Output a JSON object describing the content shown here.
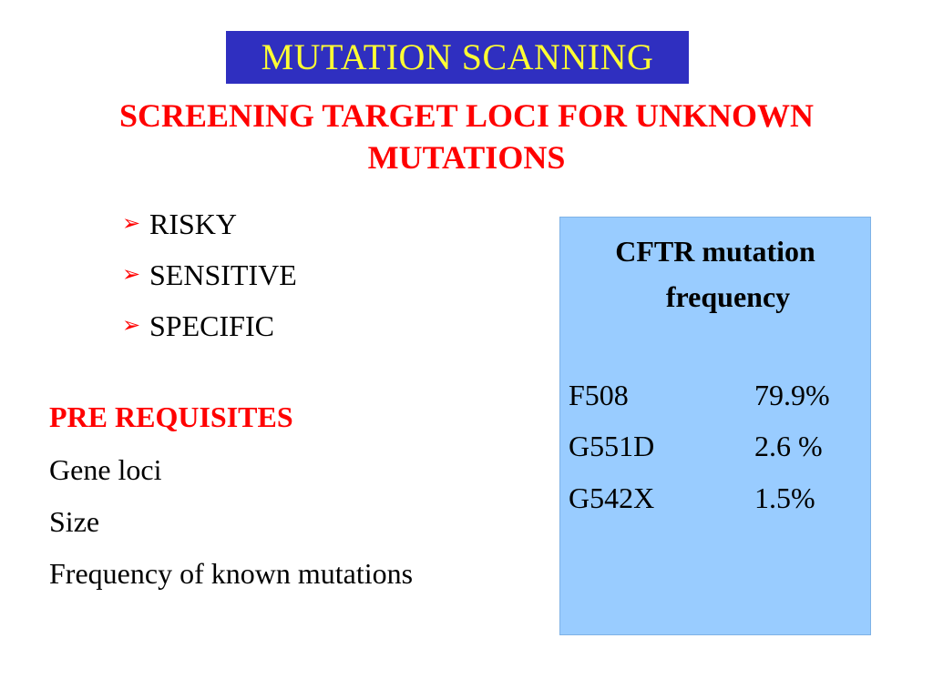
{
  "slide": {
    "title": "MUTATION SCANNING",
    "subtitle_line1": "SCREENING TARGET LOCI FOR UNKNOWN",
    "subtitle_line2": "MUTATIONS",
    "bullet_icon": "arrow-bullet-icon",
    "bullets": [
      {
        "label": "RISKY"
      },
      {
        "label": "SENSITIVE"
      },
      {
        "label": "SPECIFIC"
      }
    ],
    "prerequisites": {
      "heading": "PRE REQUISITES",
      "items": [
        {
          "label": "Gene loci"
        },
        {
          "label": "Size"
        },
        {
          "label": "Frequency of known mutations"
        }
      ]
    },
    "cftr": {
      "title_line1": "CFTR mutation",
      "title_line2": "frequency",
      "rows": [
        {
          "mutation": "F508",
          "frequency": "79.9%"
        },
        {
          "mutation": "G551D",
          "frequency": "2.6 %"
        },
        {
          "mutation": "G542X",
          "frequency": "1.5%"
        }
      ]
    }
  },
  "colors": {
    "title_background": "#2f2fc0",
    "title_text": "#ffff33",
    "accent_red": "#ff0000",
    "cftr_box_background": "#99ccff"
  }
}
